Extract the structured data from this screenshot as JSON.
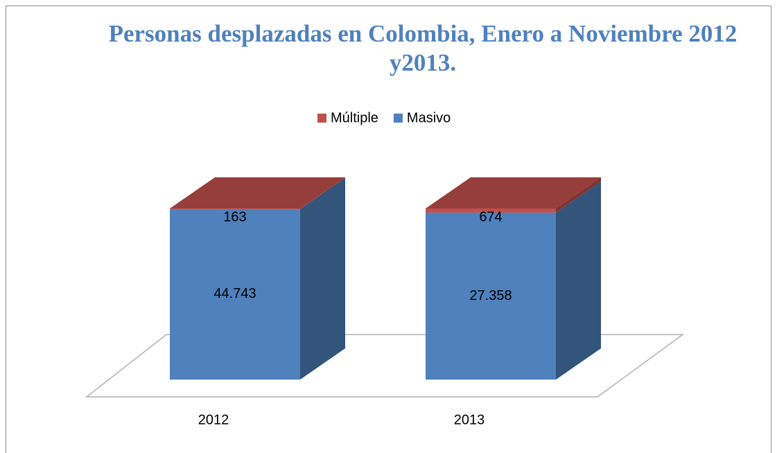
{
  "chart_data": {
    "type": "bar3d_stacked_percent",
    "title": "Personas desplazadas en Colombia, Enero a Noviembre 2012 y2013.",
    "categories": [
      "2012",
      "2013"
    ],
    "series": [
      {
        "name": "Masivo",
        "color": "#4f81bd",
        "values": [
          44743,
          27358
        ],
        "value_labels": [
          "44.743",
          "27.358"
        ]
      },
      {
        "name": "Múltiple",
        "color": "#c0504d",
        "values": [
          163,
          674
        ]
      }
    ],
    "legend": "top"
  }
}
